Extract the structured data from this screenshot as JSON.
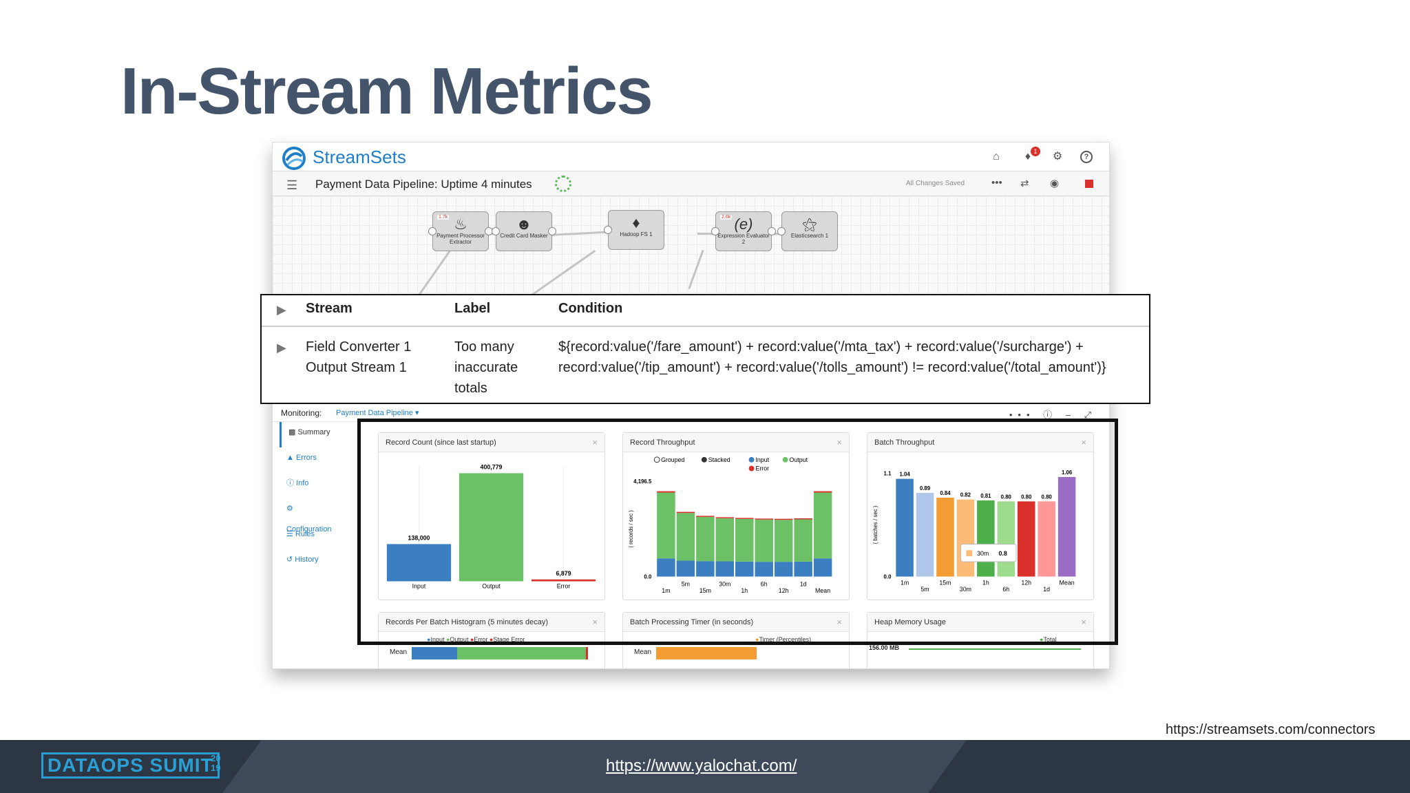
{
  "slide": {
    "title": "In-Stream Metrics",
    "source_url": "https://streamsets.com/connectors",
    "footer_url": "https://www.yalochat.com/",
    "footer_logo": "DATAOPS SUMIT",
    "footer_year": "20\n19"
  },
  "app": {
    "brand": "StreamSets",
    "notification_count": "1",
    "pipeline_title": "Payment Data Pipeline:  Uptime  4 minutes",
    "save_status": "All Changes Saved",
    "icons": [
      "home-icon",
      "bell-icon",
      "gears-icon",
      "help-icon",
      "more-icon",
      "shuffle-icon",
      "camera-icon",
      "stop-icon"
    ]
  },
  "stages": [
    {
      "label": "Payment Processor Extractor",
      "count": "1.7k"
    },
    {
      "label": "Credit Card Masker",
      "count": ""
    },
    {
      "label": "Hadoop FS 1",
      "count": ""
    },
    {
      "label": "Expression Evaluator 2",
      "count": "2.6k"
    },
    {
      "label": "Elasticsearch 1",
      "count": ""
    }
  ],
  "rule": {
    "headers": {
      "stream": "Stream",
      "label": "Label",
      "condition": "Condition"
    },
    "row": {
      "stream_line1": "Field Converter 1",
      "stream_line2": "Output Stream 1",
      "label_line1": "Too many",
      "label_line2": "inaccurate",
      "label_line3": "totals",
      "condition_line1": "${record:value('/fare_amount') + record:value('/mta_tax') + record:value('/surcharge') +",
      "condition_line2": "record:value('/tip_amount') + record:value('/tolls_amount') != record:value('/total_amount')}"
    }
  },
  "monitoring": {
    "label": "Monitoring:",
    "pipeline": "Payment Data Pipeline ▾",
    "sidebar": [
      {
        "label": "Summary",
        "icon": "bar-chart-icon"
      },
      {
        "label": "Errors",
        "icon": "warning-icon"
      },
      {
        "label": "Info",
        "icon": "info-icon"
      },
      {
        "label": "Configuration",
        "icon": "gear-icon"
      },
      {
        "label": "Rules",
        "icon": "list-icon"
      },
      {
        "label": "History",
        "icon": "history-icon"
      }
    ],
    "panels": {
      "record_count": "Record Count (since last startup)",
      "record_throughput": "Record Throughput",
      "batch_throughput": "Batch Throughput",
      "records_per_batch": "Records Per Batch Histogram (5 minutes decay)",
      "batch_timer": "Batch Processing Timer (in seconds)",
      "heap_memory": "Heap Memory Usage"
    },
    "bottom_legends": {
      "records_per_batch": [
        "Input",
        "Output",
        "Error",
        "Stage Error"
      ],
      "batch_timer": [
        "Timer (Percentiles)"
      ],
      "heap_memory": [
        "Total"
      ]
    },
    "bottom_labels": {
      "mean": "Mean",
      "heap_value": "156.00 MB"
    }
  },
  "chart_data": [
    {
      "type": "bar",
      "title": "Record Count (since last startup)",
      "categories": [
        "Input",
        "Output",
        "Error"
      ],
      "values": [
        138000,
        400779,
        6879
      ],
      "value_labels": [
        "138,000",
        "400,779",
        "6,879"
      ],
      "colors": [
        "#3c7fc0",
        "#6cc167",
        "#d9302c"
      ],
      "ylim": [
        0,
        400779
      ]
    },
    {
      "type": "bar",
      "title": "Record Throughput",
      "stacked": true,
      "ylabel": "( records / sec )",
      "y_ticks": [
        "0.0",
        "4,196.5"
      ],
      "ylim": [
        0,
        4196.5
      ],
      "categories": [
        "1m",
        "5m",
        "15m",
        "30m",
        "1h",
        "6h",
        "12h",
        "1d",
        "Mean"
      ],
      "legend": [
        "Grouped",
        "Stacked",
        "Input",
        "Output",
        "Error"
      ],
      "series": [
        {
          "name": "Input",
          "color": "#3c7fc0",
          "values": [
            800,
            700,
            680,
            670,
            660,
            650,
            650,
            660,
            800
          ]
        },
        {
          "name": "Output",
          "color": "#6cc167",
          "values": [
            2900,
            2100,
            1950,
            1900,
            1880,
            1860,
            1850,
            1860,
            2900
          ]
        },
        {
          "name": "Error",
          "color": "#d9302c",
          "values": [
            60,
            50,
            45,
            45,
            45,
            45,
            45,
            45,
            60
          ]
        }
      ]
    },
    {
      "type": "bar",
      "title": "Batch Throughput",
      "ylabel": "( batches / sec )",
      "y_ticks": [
        "0.0",
        "1.1"
      ],
      "ylim": [
        0,
        1.1
      ],
      "categories": [
        "1m",
        "5m",
        "15m",
        "30m",
        "1h",
        "6h",
        "12h",
        "1d",
        "Mean"
      ],
      "values": [
        1.04,
        0.89,
        0.84,
        0.82,
        0.81,
        0.8,
        0.8,
        0.8,
        1.06
      ],
      "value_labels": [
        "1.04",
        "0.89",
        "0.84",
        "0.82",
        "0.81",
        "0.80",
        "0.80",
        "0.80",
        "1.06"
      ],
      "colors": [
        "#3c7fc0",
        "#aec7e8",
        "#f39c33",
        "#fdbb78",
        "#4daf4a",
        "#9edb8c",
        "#d9302c",
        "#ff9896",
        "#9b6cc4"
      ],
      "tooltip": {
        "label": "30m",
        "value": "0.8"
      }
    }
  ]
}
